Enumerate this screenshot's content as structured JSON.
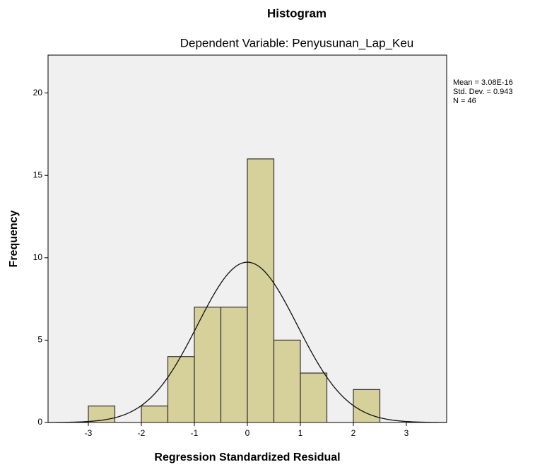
{
  "chart_data": {
    "type": "histogram",
    "title": "Histogram",
    "subtitle": "Dependent Variable: Penyusunan_Lap_Keu",
    "x_label": "Regression Standardized Residual",
    "y_label": "Frequency",
    "bins": [
      -3,
      -2.5,
      -2,
      -1.5,
      -1,
      -0.5,
      0,
      0.5,
      1,
      1.5,
      2,
      2.5
    ],
    "values": [
      1,
      0,
      1,
      4,
      7,
      7,
      16,
      5,
      3,
      0,
      2
    ],
    "color": "#d6d09a",
    "xlim": [
      -3.76,
      3.76
    ],
    "ylim": [
      0,
      22.3
    ],
    "xticks": [
      -3,
      -2,
      -1,
      0,
      1,
      2,
      3
    ],
    "yticks": [
      0,
      5,
      10,
      15,
      20
    ],
    "stats_text": [
      "Mean = 3.08E-16",
      "Std. Dev. = 0.943",
      "N = 46"
    ],
    "normal_curve": {
      "mean": 3.08e-16,
      "std_dev": 0.943,
      "n": 46
    }
  }
}
